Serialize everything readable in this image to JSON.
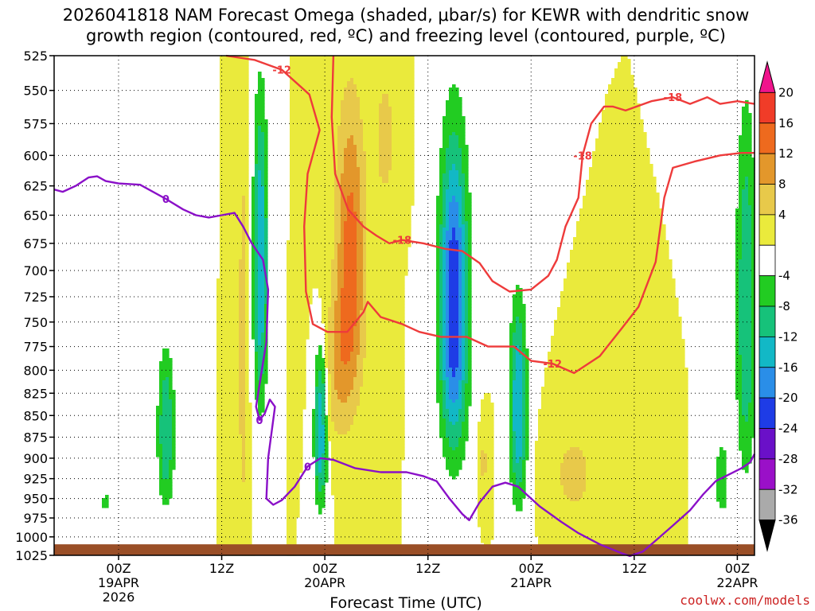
{
  "chart_data": {
    "type": "heatmap",
    "title_line1": "2026041818 NAM Forecast Omega (shaded, μbar/s) for KEWR with dendritic snow",
    "title_line2": "growth region (contoured, red, ºC) and freezing level (contoured, purple, ºC)",
    "xlabel": "Forecast Time (UTC)",
    "credit": "coolwx.com/models",
    "x_range_hours": [
      -7.5,
      74
    ],
    "y_levels_hpa": [
      525,
      550,
      575,
      600,
      625,
      650,
      675,
      700,
      725,
      750,
      775,
      800,
      825,
      850,
      875,
      900,
      925,
      950,
      975,
      1000,
      1025
    ],
    "x_ticks": [
      {
        "hour": 0,
        "label": "00Z",
        "sub1": "19APR",
        "sub2": "2026"
      },
      {
        "hour": 12,
        "label": "12Z",
        "sub1": "",
        "sub2": ""
      },
      {
        "hour": 24,
        "label": "00Z",
        "sub1": "20APR",
        "sub2": ""
      },
      {
        "hour": 36,
        "label": "12Z",
        "sub1": "",
        "sub2": ""
      },
      {
        "hour": 48,
        "label": "00Z",
        "sub1": "21APR",
        "sub2": ""
      },
      {
        "hour": 60,
        "label": "12Z",
        "sub1": "",
        "sub2": ""
      },
      {
        "hour": 72,
        "label": "00Z",
        "sub1": "22APR",
        "sub2": ""
      }
    ],
    "colorbar": {
      "labels": [
        "20",
        "16",
        "12",
        "8",
        "4",
        "-4",
        "-8",
        "-12",
        "-16",
        "-20",
        "-24",
        "-28",
        "-32",
        "-36"
      ],
      "bins": [
        {
          "lo": 20,
          "hi": 24,
          "color": "#f0148c"
        },
        {
          "lo": 16,
          "hi": 20,
          "color": "#f03c28"
        },
        {
          "lo": 12,
          "hi": 16,
          "color": "#ee6a1e"
        },
        {
          "lo": 8,
          "hi": 12,
          "color": "#e3972b"
        },
        {
          "lo": 4,
          "hi": 8,
          "color": "#e8c94a"
        },
        {
          "lo": 0,
          "hi": 4,
          "color": "#eaea3c"
        },
        {
          "lo": -4,
          "hi": 0,
          "color": "#ffffff"
        },
        {
          "lo": -8,
          "hi": -4,
          "color": "#22cc22"
        },
        {
          "lo": -12,
          "hi": -8,
          "color": "#16c27a"
        },
        {
          "lo": -16,
          "hi": -12,
          "color": "#12b8c6"
        },
        {
          "lo": -20,
          "hi": -16,
          "color": "#2a8ee8"
        },
        {
          "lo": -24,
          "hi": -20,
          "color": "#1e3ce6"
        },
        {
          "lo": -28,
          "hi": -24,
          "color": "#6a10c8"
        },
        {
          "lo": -32,
          "hi": -28,
          "color": "#9a10c8"
        },
        {
          "lo": -36,
          "hi": -32,
          "color": "#aaaaaa"
        },
        {
          "lo": -40,
          "hi": -36,
          "color": "#000000"
        }
      ]
    },
    "omega_features": [
      {
        "name": "ascent-plume-day1-evening",
        "hour": 5.5,
        "top_hpa": 760,
        "bottom_hpa": 975,
        "peak": -12,
        "halfwidth_hours": 1.2
      },
      {
        "name": "ascent-plume-day1-small",
        "hour": -1.5,
        "top_hpa": 940,
        "bottom_hpa": 970,
        "peak": -6,
        "halfwidth_hours": 0.6
      },
      {
        "name": "ascent-plume-day2-morning",
        "hour": 16.5,
        "top_hpa": 525,
        "bottom_hpa": 860,
        "peak": -16,
        "halfwidth_hours": 1.0
      },
      {
        "name": "ascent-plume-day2-mid",
        "hour": 23.5,
        "top_hpa": 760,
        "bottom_hpa": 975,
        "peak": -16,
        "halfwidth_hours": 0.9
      },
      {
        "name": "ascent-plume-day2-afternoon",
        "hour": 39.0,
        "top_hpa": 555,
        "bottom_hpa": 915,
        "peak": -24,
        "halfwidth_hours": 2.0
      },
      {
        "name": "ascent-plume-day3",
        "hour": 46.5,
        "top_hpa": 705,
        "bottom_hpa": 975,
        "peak": -16,
        "halfwidth_hours": 1.2
      },
      {
        "name": "ascent-plume-day4-right",
        "hour": 73.0,
        "top_hpa": 525,
        "bottom_hpa": 950,
        "peak": -12,
        "halfwidth_hours": 1.4
      },
      {
        "name": "ascent-plume-day4-low",
        "hour": 70.2,
        "top_hpa": 870,
        "bottom_hpa": 980,
        "peak": -8,
        "halfwidth_hours": 0.9
      },
      {
        "name": "descent-plume-day2-upper",
        "hour": 27.0,
        "top_hpa": 525,
        "bottom_hpa": 860,
        "peak": 14,
        "halfwidth_hours": 2.2
      },
      {
        "name": "descent-plume-day2-lower",
        "hour": 25.5,
        "top_hpa": 700,
        "bottom_hpa": 900,
        "peak": 6,
        "halfwidth_hours": 2.0
      },
      {
        "name": "descent-plume-day2-morning",
        "hour": 14.5,
        "top_hpa": 570,
        "bottom_hpa": 990,
        "peak": 8,
        "halfwidth_hours": 0.6
      },
      {
        "name": "descent-plume-day2-upper-mid",
        "hour": 31.0,
        "top_hpa": 525,
        "bottom_hpa": 650,
        "peak": 6,
        "halfwidth_hours": 1.5
      },
      {
        "name": "descent-plume-day3-low",
        "hour": 53.0,
        "top_hpa": 860,
        "bottom_hpa": 980,
        "peak": 6,
        "halfwidth_hours": 3.0
      },
      {
        "name": "descent-plume-day3-small",
        "hour": 42.5,
        "top_hpa": 850,
        "bottom_hpa": 960,
        "peak": 5,
        "halfwidth_hours": 0.6
      }
    ],
    "dgz_contours": [
      {
        "label": "-12",
        "points": [
          [
            12.5,
            525
          ],
          [
            15.8,
            528
          ],
          [
            19.0,
            535
          ],
          [
            22.2,
            553
          ],
          [
            23.4,
            580
          ],
          [
            22.0,
            615
          ],
          [
            21.6,
            660
          ],
          [
            21.8,
            720
          ],
          [
            22.6,
            752
          ],
          [
            24.3,
            760
          ],
          [
            26.6,
            760
          ],
          [
            28.5,
            740
          ],
          [
            29.0,
            730
          ],
          [
            30.5,
            745
          ],
          [
            33.0,
            752
          ],
          [
            35.0,
            760
          ],
          [
            37.5,
            765
          ],
          [
            40.5,
            765
          ],
          [
            43.0,
            775
          ],
          [
            46.0,
            775
          ],
          [
            48.0,
            790
          ],
          [
            50.5,
            793
          ],
          [
            53.0,
            803
          ],
          [
            56.0,
            785
          ],
          [
            58.5,
            757
          ],
          [
            60.5,
            735
          ],
          [
            62.5,
            692
          ],
          [
            63.5,
            635
          ],
          [
            64.5,
            610
          ],
          [
            67.0,
            605
          ],
          [
            70.0,
            600
          ],
          [
            72.5,
            598
          ],
          [
            74,
            598
          ]
        ]
      },
      {
        "label": "-18",
        "points": [
          [
            25.0,
            525
          ],
          [
            24.8,
            570
          ],
          [
            25.2,
            615
          ],
          [
            26.7,
            645
          ],
          [
            28.5,
            660
          ],
          [
            30.0,
            668
          ],
          [
            31.5,
            675
          ],
          [
            33.0,
            672
          ],
          [
            35.5,
            675
          ],
          [
            38.0,
            680
          ],
          [
            40.0,
            682
          ],
          [
            42.0,
            693
          ],
          [
            43.5,
            710
          ],
          [
            45.5,
            720
          ],
          [
            48.0,
            718
          ],
          [
            50.0,
            705
          ],
          [
            51.0,
            690
          ],
          [
            52.0,
            660
          ],
          [
            53.5,
            635
          ],
          [
            54.0,
            600
          ],
          [
            55.0,
            575
          ],
          [
            56.5,
            562
          ],
          [
            57.5,
            562
          ],
          [
            59.0,
            565
          ],
          [
            62.0,
            558
          ],
          [
            64.5,
            555
          ],
          [
            66.5,
            560
          ],
          [
            68.5,
            555
          ],
          [
            70.0,
            560
          ],
          [
            72.0,
            558
          ],
          [
            74,
            560
          ]
        ]
      }
    ],
    "freezing_contour": {
      "label": "0",
      "points": [
        [
          -7.5,
          628
        ],
        [
          -6.5,
          630
        ],
        [
          -5.0,
          625
        ],
        [
          -3.5,
          618
        ],
        [
          -2.5,
          617
        ],
        [
          -1.5,
          621
        ],
        [
          0.0,
          623
        ],
        [
          2.5,
          624
        ],
        [
          5.5,
          636
        ],
        [
          7.5,
          645
        ],
        [
          9.0,
          650
        ],
        [
          10.5,
          652
        ],
        [
          12.0,
          650
        ],
        [
          13.5,
          648
        ],
        [
          14.5,
          660
        ],
        [
          15.5,
          675
        ],
        [
          16.8,
          690
        ],
        [
          17.4,
          718
        ],
        [
          17.2,
          770
        ],
        [
          16.5,
          810
        ],
        [
          16.0,
          840
        ],
        [
          16.4,
          855
        ],
        [
          17.0,
          848
        ],
        [
          17.6,
          832
        ],
        [
          18.2,
          840
        ],
        [
          17.4,
          900
        ],
        [
          17.2,
          950
        ],
        [
          18.0,
          958
        ],
        [
          19.0,
          952
        ],
        [
          20.5,
          935
        ],
        [
          22.0,
          910
        ],
        [
          23.5,
          900
        ],
        [
          25.0,
          902
        ],
        [
          27.5,
          912
        ],
        [
          30.5,
          917
        ],
        [
          33.5,
          917
        ],
        [
          35.5,
          922
        ],
        [
          37.0,
          928
        ],
        [
          38.5,
          950
        ],
        [
          40.0,
          970
        ],
        [
          40.8,
          978
        ],
        [
          42.0,
          955
        ],
        [
          43.5,
          935
        ],
        [
          45.0,
          930
        ],
        [
          46.5,
          935
        ],
        [
          47.5,
          945
        ],
        [
          49.0,
          960
        ],
        [
          51.5,
          980
        ],
        [
          53.5,
          995
        ],
        [
          56.0,
          1010
        ],
        [
          58.5,
          1022
        ],
        [
          59.5,
          1026
        ],
        [
          61.0,
          1020
        ],
        [
          62.5,
          1005
        ],
        [
          64.5,
          985
        ],
        [
          66.5,
          965
        ],
        [
          68.0,
          945
        ],
        [
          69.5,
          928
        ],
        [
          71.0,
          920
        ],
        [
          72.5,
          912
        ],
        [
          73.5,
          905
        ],
        [
          74,
          895
        ]
      ]
    },
    "terrain_hpa": 1010
  }
}
